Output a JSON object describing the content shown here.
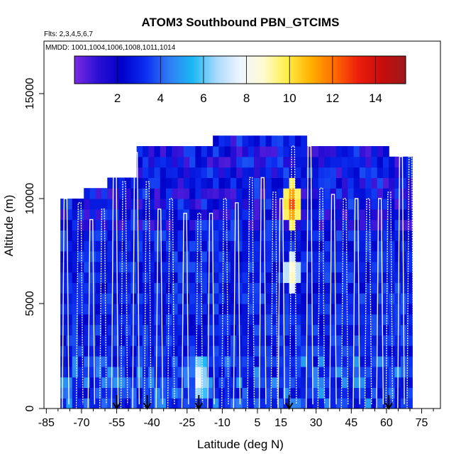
{
  "chart_data": {
    "type": "heatmap",
    "title": "ATOM3 Southbound PBN_GTCIMS",
    "annotations": [
      "Flts: 2,3,4,5,6,7",
      "MMDD: 1001,1004,1006,1008,1011,1014"
    ],
    "xlabel": "Latitude (deg N)",
    "ylabel": "Altitude (m)",
    "xlim": [
      -86,
      83
    ],
    "ylim": [
      0,
      17500
    ],
    "x_ticks": [
      -85,
      -70,
      -55,
      -40,
      -25,
      -10,
      5,
      15,
      30,
      45,
      60,
      75
    ],
    "x_minor_ticks": [
      -80,
      -75,
      -65,
      -60,
      -50,
      -45,
      -35,
      -30,
      -20,
      -15,
      -5,
      0,
      10,
      20,
      25,
      35,
      40,
      50,
      55,
      65,
      70,
      80
    ],
    "y_ticks": [
      0,
      5000,
      10000,
      15000
    ],
    "colorbar": {
      "range": [
        0,
        15.4
      ],
      "ticks": [
        2,
        4,
        6,
        8,
        10,
        12,
        14
      ],
      "colors": [
        "#7a2be0",
        "#2c0fd6",
        "#0000c8",
        "#0c2ef0",
        "#2f7df5",
        "#1cb8f5",
        "#a9d9fb",
        "#eef6ff",
        "#fffbd0",
        "#ffee44",
        "#ffb000",
        "#ff6a00",
        "#ec1d0c",
        "#c80c0c",
        "#9c1a1a"
      ]
    },
    "region_tops": [
      {
        "lat": [
          -79,
          -70
        ],
        "top": 10000
      },
      {
        "lat": [
          -70,
          -60
        ],
        "top": 10500
      },
      {
        "lat": [
          -60,
          -47
        ],
        "top": 11000
      },
      {
        "lat": [
          -47,
          -15
        ],
        "top": 12500
      },
      {
        "lat": [
          -15,
          26
        ],
        "top": 13000
      },
      {
        "lat": [
          26,
          60
        ],
        "top": 12500
      },
      {
        "lat": [
          60,
          71
        ],
        "top": 12000
      }
    ],
    "profiles": [
      {
        "lat": -77,
        "top": 10000
      },
      {
        "lat": -71,
        "top": 9800
      },
      {
        "lat": -66,
        "top": 9000
      },
      {
        "lat": -61,
        "top": 9500
      },
      {
        "lat": -56,
        "top": 11800
      },
      {
        "lat": -52,
        "top": 10800
      },
      {
        "lat": -47,
        "top": 12200
      },
      {
        "lat": -42,
        "top": 10800
      },
      {
        "lat": -37,
        "top": 9500
      },
      {
        "lat": -32,
        "top": 10000
      },
      {
        "lat": -26,
        "top": 9300
      },
      {
        "lat": -20,
        "top": 9300
      },
      {
        "lat": -15,
        "top": 9300
      },
      {
        "lat": -9,
        "top": 10000
      },
      {
        "lat": -4,
        "top": 9800
      },
      {
        "lat": 2,
        "top": 11000
      },
      {
        "lat": 7,
        "top": 11000
      },
      {
        "lat": 12,
        "top": 10300
      },
      {
        "lat": 15,
        "top": 10000
      },
      {
        "lat": 20,
        "top": 12500
      },
      {
        "lat": 27,
        "top": 12500
      },
      {
        "lat": 32,
        "top": 10500
      },
      {
        "lat": 37,
        "top": 10200
      },
      {
        "lat": 42,
        "top": 10000
      },
      {
        "lat": 47,
        "top": 10000
      },
      {
        "lat": 52,
        "top": 10000
      },
      {
        "lat": 57,
        "top": 10000
      },
      {
        "lat": 61,
        "top": 10300
      },
      {
        "lat": 66,
        "top": 12000
      },
      {
        "lat": 70,
        "top": 12000
      }
    ],
    "hotspots": [
      {
        "lat": 18.5,
        "alt": 9500,
        "value": 12.5
      },
      {
        "lat": 18.5,
        "alt": 6200,
        "value": 9.5
      },
      {
        "lat": -21,
        "alt": 1200,
        "value": 8.5
      },
      {
        "lat": -57,
        "alt": 11500,
        "value": 5.5
      },
      {
        "lat": 57,
        "alt": 6800,
        "value": 5.0
      }
    ],
    "arrow_latitudes": [
      -55,
      -42,
      -20,
      18.5,
      61
    ]
  }
}
